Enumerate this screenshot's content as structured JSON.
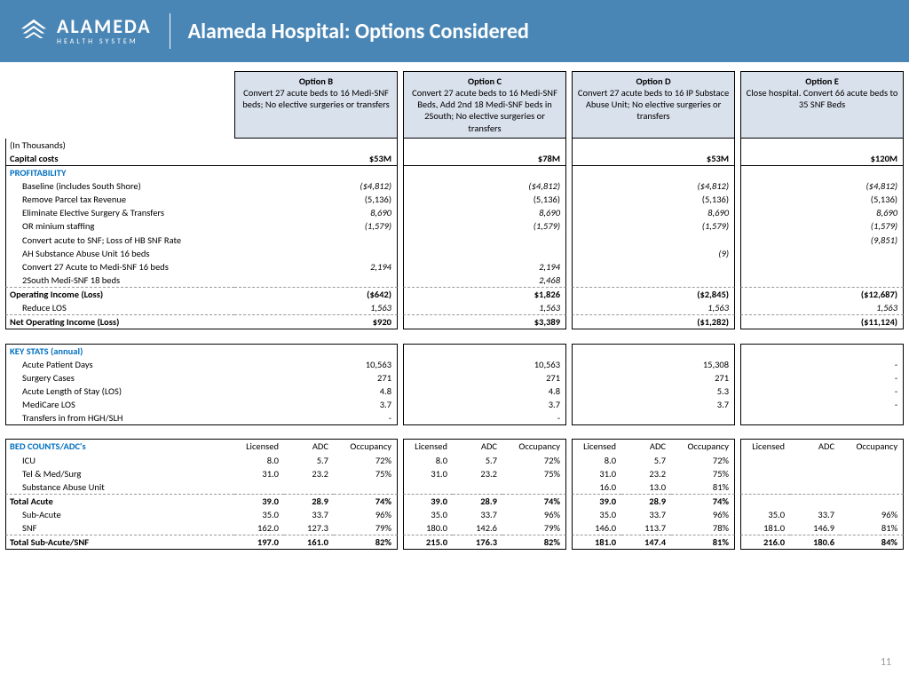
{
  "header": {
    "brand_main": "ALAMEDA",
    "brand_sub": "HEALTH SYSTEM",
    "title": "Alameda Hospital:  Options Considered"
  },
  "page_number": "11",
  "options": [
    {
      "title": "Option B",
      "desc": "Convert 27 acute beds to 16 Medi-SNF beds; No elective surgeries or transfers"
    },
    {
      "title": "Option C",
      "desc": "Convert 27 acute beds to 16 Medi-SNF Beds, Add 2nd 18 Medi-SNF beds in 2South; No elective surgeries or transfers"
    },
    {
      "title": "Option D",
      "desc": "Convert 27 acute beds to 16 IP Substace Abuse Unit; No elective surgeries or transfers"
    },
    {
      "title": "Option E",
      "desc": "Close hospital.  Convert 66 acute beds to 35 SNF Beds"
    }
  ],
  "rows": {
    "units": "(In Thousands)",
    "capital": {
      "label": "Capital costs",
      "v": [
        "$53M",
        "$78M",
        "$53M",
        "$120M"
      ]
    },
    "profitability": "PROFITABILITY",
    "baseline": {
      "label": "Baseline (includes South Shore)",
      "v": [
        "($4,812)",
        "($4,812)",
        "($4,812)",
        "($4,812)"
      ]
    },
    "parcel": {
      "label": "Remove Parcel tax Revenue",
      "v": [
        "(5,136)",
        "(5,136)",
        "(5,136)",
        "(5,136)"
      ]
    },
    "elective": {
      "label": "Eliminate Elective Surgery & Transfers",
      "v": [
        "8,690",
        "8,690",
        "8,690",
        "8,690"
      ]
    },
    "ormin": {
      "label": "OR minium staffing",
      "v": [
        "(1,579)",
        "(1,579)",
        "(1,579)",
        "(1,579)"
      ]
    },
    "convert_snf": {
      "label": "Convert acute to SNF; Loss of HB SNF Rate",
      "v": [
        "",
        "",
        "",
        "(9,851)"
      ]
    },
    "ah_sub": {
      "label": "AH Substance Abuse Unit 16 beds",
      "v": [
        "",
        "",
        "(9)",
        ""
      ]
    },
    "conv27": {
      "label": "Convert 27 Acute to Medi-SNF 16 beds",
      "v": [
        "2,194",
        "2,194",
        "",
        ""
      ]
    },
    "south18": {
      "label": "2South Medi-SNF 18 beds",
      "v": [
        "",
        "2,468",
        "",
        ""
      ]
    },
    "opinc": {
      "label": "Operating Income (Loss)",
      "v": [
        "($642)",
        "$1,826",
        "($2,845)",
        "($12,687)"
      ]
    },
    "reducelos": {
      "label": "Reduce LOS",
      "v": [
        "1,563",
        "1,563",
        "1,563",
        "1,563"
      ]
    },
    "netop": {
      "label": "Net Operating Income (Loss)",
      "v": [
        "$920",
        "$3,389",
        "($1,282)",
        "($11,124)"
      ]
    },
    "keystats": "KEY STATS (annual)",
    "apd": {
      "label": "Acute Patient Days",
      "v": [
        "10,563",
        "10,563",
        "15,308",
        "-"
      ]
    },
    "surg": {
      "label": "Surgery Cases",
      "v": [
        "271",
        "271",
        "271",
        "-"
      ]
    },
    "los": {
      "label": "Acute Length of Stay (LOS)",
      "v": [
        "4.8",
        "4.8",
        "5.3",
        "-"
      ]
    },
    "mlos": {
      "label": "MediCare LOS",
      "v": [
        "3.7",
        "3.7",
        "3.7",
        "-"
      ]
    },
    "transfers": {
      "label": "Transfers in from HGH/SLH",
      "v": [
        "-",
        "-",
        "",
        ""
      ]
    },
    "bedhdr": {
      "label": "BED COUNTS/ADC's",
      "c": [
        "Licensed",
        "ADC",
        "Occupancy"
      ]
    },
    "icu": {
      "label": "ICU",
      "v": [
        [
          "8.0",
          "5.7",
          "72%"
        ],
        [
          "8.0",
          "5.7",
          "72%"
        ],
        [
          "8.0",
          "5.7",
          "72%"
        ],
        [
          "",
          "",
          ""
        ]
      ]
    },
    "tms": {
      "label": "Tel & Med/Surg",
      "v": [
        [
          "31.0",
          "23.2",
          "75%"
        ],
        [
          "31.0",
          "23.2",
          "75%"
        ],
        [
          "31.0",
          "23.2",
          "75%"
        ],
        [
          "",
          "",
          ""
        ]
      ]
    },
    "sau": {
      "label": "Substance Abuse Unit",
      "v": [
        [
          "",
          "",
          ""
        ],
        [
          "",
          "",
          ""
        ],
        [
          "16.0",
          "13.0",
          "81%"
        ],
        [
          "",
          "",
          ""
        ]
      ]
    },
    "totacute": {
      "label": "Total Acute",
      "v": [
        [
          "39.0",
          "28.9",
          "74%"
        ],
        [
          "39.0",
          "28.9",
          "74%"
        ],
        [
          "39.0",
          "28.9",
          "74%"
        ],
        [
          "",
          "",
          ""
        ]
      ]
    },
    "subacute": {
      "label": "Sub-Acute",
      "v": [
        [
          "35.0",
          "33.7",
          "96%"
        ],
        [
          "35.0",
          "33.7",
          "96%"
        ],
        [
          "35.0",
          "33.7",
          "96%"
        ],
        [
          "35.0",
          "33.7",
          "96%"
        ]
      ]
    },
    "snf": {
      "label": "SNF",
      "v": [
        [
          "162.0",
          "127.3",
          "79%"
        ],
        [
          "180.0",
          "142.6",
          "79%"
        ],
        [
          "146.0",
          "113.7",
          "78%"
        ],
        [
          "181.0",
          "146.9",
          "81%"
        ]
      ]
    },
    "totsub": {
      "label": "Total Sub-Acute/SNF",
      "v": [
        [
          "197.0",
          "161.0",
          "82%"
        ],
        [
          "215.0",
          "176.3",
          "82%"
        ],
        [
          "181.0",
          "147.4",
          "81%"
        ],
        [
          "216.0",
          "180.6",
          "84%"
        ]
      ]
    }
  }
}
